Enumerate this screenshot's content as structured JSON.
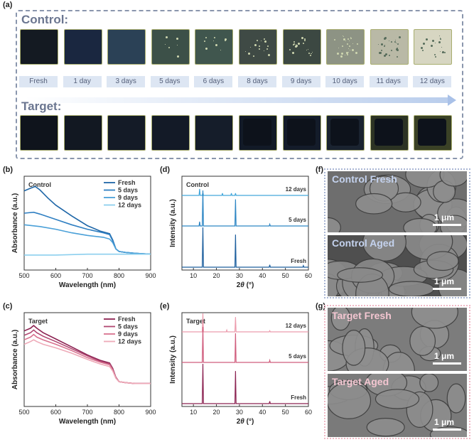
{
  "panels": {
    "a": "(a)",
    "b": "(b)",
    "c": "(c)",
    "d": "(d)",
    "e": "(e)",
    "f": "(f)",
    "g": "(g)"
  },
  "panel_a": {
    "control_title": "Control:",
    "target_title": "Target:",
    "days": [
      "Fresh",
      "1 day",
      "3 days",
      "5 days",
      "6 days",
      "8 days",
      "9 days",
      "10 days",
      "11 days",
      "12 days"
    ],
    "control_tiles": [
      {
        "bg": "#141a22",
        "spots": 0
      },
      {
        "bg": "#1a2740",
        "spots": 0
      },
      {
        "bg": "#2b4156",
        "spots": 0
      },
      {
        "bg": "#3c5048",
        "spots": 2
      },
      {
        "bg": "#40564e",
        "spots": 3
      },
      {
        "bg": "#3f4a45",
        "spots": 5
      },
      {
        "bg": "#3c4842",
        "spots": 7
      },
      {
        "bg": "#8d9384",
        "spots": 9
      },
      {
        "bg": "#b9b9a6",
        "spots": 8
      },
      {
        "bg": "#d7d6c2",
        "spots": 6
      }
    ],
    "target_tiles": [
      {
        "bg": "#0f141c"
      },
      {
        "bg": "#121822"
      },
      {
        "bg": "#141b27"
      },
      {
        "bg": "#131a27"
      },
      {
        "bg": "#151d2a"
      },
      {
        "bg": "#121a27"
      },
      {
        "bg": "#141c2a"
      },
      {
        "bg": "#1a2330"
      },
      {
        "bg": "#2c3324"
      },
      {
        "bg": "#3a4126"
      }
    ]
  },
  "sem": {
    "control_fresh": "Control Fresh",
    "control_aged": "Control Aged",
    "target_fresh": "Target Fresh",
    "target_aged": "Target Aged",
    "scale": "1 μm"
  },
  "chart_data": [
    {
      "id": "b",
      "type": "line",
      "annotation": "Control",
      "xlabel": "Wavelength (nm)",
      "ylabel": "Absorbance (a.u.)",
      "xlim": [
        500,
        900
      ],
      "xticks": [
        500,
        600,
        700,
        800,
        900
      ],
      "legend_placement": "top-right",
      "series": [
        {
          "name": "Fresh",
          "color": "#1f67a8",
          "x": [
            500,
            520,
            535,
            550,
            575,
            600,
            650,
            700,
            740,
            770,
            780,
            790,
            800,
            820,
            850,
            900
          ],
          "y": [
            0.88,
            0.91,
            0.93,
            0.89,
            0.8,
            0.72,
            0.6,
            0.49,
            0.43,
            0.4,
            0.33,
            0.23,
            0.2,
            0.19,
            0.18,
            0.17
          ]
        },
        {
          "name": "5 days",
          "color": "#2f7fc2",
          "x": [
            500,
            530,
            550,
            600,
            650,
            700,
            750,
            770,
            780,
            790,
            800,
            820,
            850,
            900
          ],
          "y": [
            0.63,
            0.64,
            0.62,
            0.56,
            0.5,
            0.45,
            0.41,
            0.39,
            0.32,
            0.23,
            0.2,
            0.19,
            0.18,
            0.17
          ]
        },
        {
          "name": "9 days",
          "color": "#4aa0d8",
          "x": [
            500,
            550,
            600,
            650,
            700,
            750,
            770,
            780,
            790,
            800,
            820,
            850,
            900
          ],
          "y": [
            0.5,
            0.48,
            0.45,
            0.41,
            0.38,
            0.36,
            0.34,
            0.3,
            0.23,
            0.2,
            0.19,
            0.18,
            0.17
          ]
        },
        {
          "name": "12 days",
          "color": "#8ccfee",
          "x": [
            500,
            600,
            700,
            800,
            900
          ],
          "y": [
            0.16,
            0.16,
            0.17,
            0.17,
            0.17
          ]
        }
      ]
    },
    {
      "id": "c",
      "type": "line",
      "annotation": "Target",
      "xlabel": "Wavelength (nm)",
      "ylabel": "Absorbance (a.u.)",
      "xlim": [
        500,
        900
      ],
      "xticks": [
        500,
        600,
        700,
        800,
        900
      ],
      "legend_placement": "top-right",
      "series": [
        {
          "name": "Fresh",
          "color": "#8c2352",
          "x": [
            500,
            520,
            530,
            540,
            560,
            600,
            650,
            700,
            740,
            770,
            780,
            790,
            800,
            820,
            850,
            900
          ],
          "y": [
            0.84,
            0.87,
            0.9,
            0.87,
            0.82,
            0.75,
            0.66,
            0.57,
            0.51,
            0.48,
            0.42,
            0.32,
            0.27,
            0.26,
            0.25,
            0.25
          ]
        },
        {
          "name": "5 days",
          "color": "#b04771",
          "x": [
            500,
            520,
            530,
            540,
            560,
            600,
            650,
            700,
            740,
            770,
            780,
            790,
            800,
            820,
            850,
            900
          ],
          "y": [
            0.79,
            0.82,
            0.85,
            0.82,
            0.78,
            0.72,
            0.64,
            0.56,
            0.5,
            0.47,
            0.41,
            0.32,
            0.27,
            0.26,
            0.25,
            0.25
          ]
        },
        {
          "name": "9 days",
          "color": "#d8728f",
          "x": [
            500,
            520,
            530,
            540,
            560,
            600,
            650,
            700,
            740,
            770,
            780,
            790,
            800,
            820,
            850,
            900
          ],
          "y": [
            0.74,
            0.77,
            0.8,
            0.77,
            0.74,
            0.69,
            0.62,
            0.54,
            0.49,
            0.46,
            0.4,
            0.31,
            0.27,
            0.26,
            0.25,
            0.25
          ]
        },
        {
          "name": "12 days",
          "color": "#eeaab8",
          "x": [
            500,
            520,
            530,
            540,
            560,
            600,
            650,
            700,
            740,
            770,
            780,
            790,
            800,
            820,
            850,
            900
          ],
          "y": [
            0.69,
            0.72,
            0.74,
            0.72,
            0.69,
            0.65,
            0.59,
            0.52,
            0.47,
            0.44,
            0.39,
            0.31,
            0.27,
            0.26,
            0.25,
            0.25
          ]
        }
      ]
    },
    {
      "id": "d",
      "type": "line",
      "annotation": "Control",
      "xlabel": "2θ (°)",
      "ylabel": "Intensity (a.u.)",
      "xlim": [
        5,
        60
      ],
      "xticks": [
        10,
        20,
        30,
        40,
        50,
        60
      ],
      "series": [
        {
          "name": "12 days",
          "color": "#44a7db",
          "peaks": [
            [
              12.7,
              0.35
            ],
            [
              14.1,
              0.15
            ],
            [
              22.6,
              0.12
            ],
            [
              26.5,
              0.12
            ],
            [
              28.3,
              0.12
            ]
          ]
        },
        {
          "name": "5 days",
          "color": "#2d86c4",
          "peaks": [
            [
              12.7,
              0.12
            ],
            [
              14.1,
              1.0
            ],
            [
              28.3,
              0.75
            ],
            [
              43.2,
              0.05
            ]
          ]
        },
        {
          "name": "Fresh",
          "color": "#1d5f9e",
          "peaks": [
            [
              14.1,
              1.0
            ],
            [
              28.3,
              0.82
            ],
            [
              43.2,
              0.06
            ],
            [
              57.8,
              0.04
            ]
          ]
        }
      ]
    },
    {
      "id": "e",
      "type": "line",
      "annotation": "Target",
      "xlabel": "2θ (°)",
      "ylabel": "Intensity (a.u.)",
      "xlim": [
        5,
        60
      ],
      "xticks": [
        10,
        20,
        30,
        40,
        50,
        60
      ],
      "series": [
        {
          "name": "12 days",
          "color": "#ec9cad",
          "peaks": [
            [
              14.1,
              1.0
            ],
            [
              24.5,
              0.1
            ],
            [
              28.3,
              0.8
            ],
            [
              43.2,
              0.06
            ]
          ]
        },
        {
          "name": "5 days",
          "color": "#d05d7d",
          "peaks": [
            [
              14.1,
              1.0
            ],
            [
              28.3,
              0.82
            ],
            [
              43.2,
              0.06
            ]
          ]
        },
        {
          "name": "Fresh",
          "color": "#8c2352",
          "peaks": [
            [
              14.1,
              1.0
            ],
            [
              28.3,
              0.82
            ],
            [
              43.2,
              0.06
            ]
          ]
        }
      ]
    }
  ]
}
